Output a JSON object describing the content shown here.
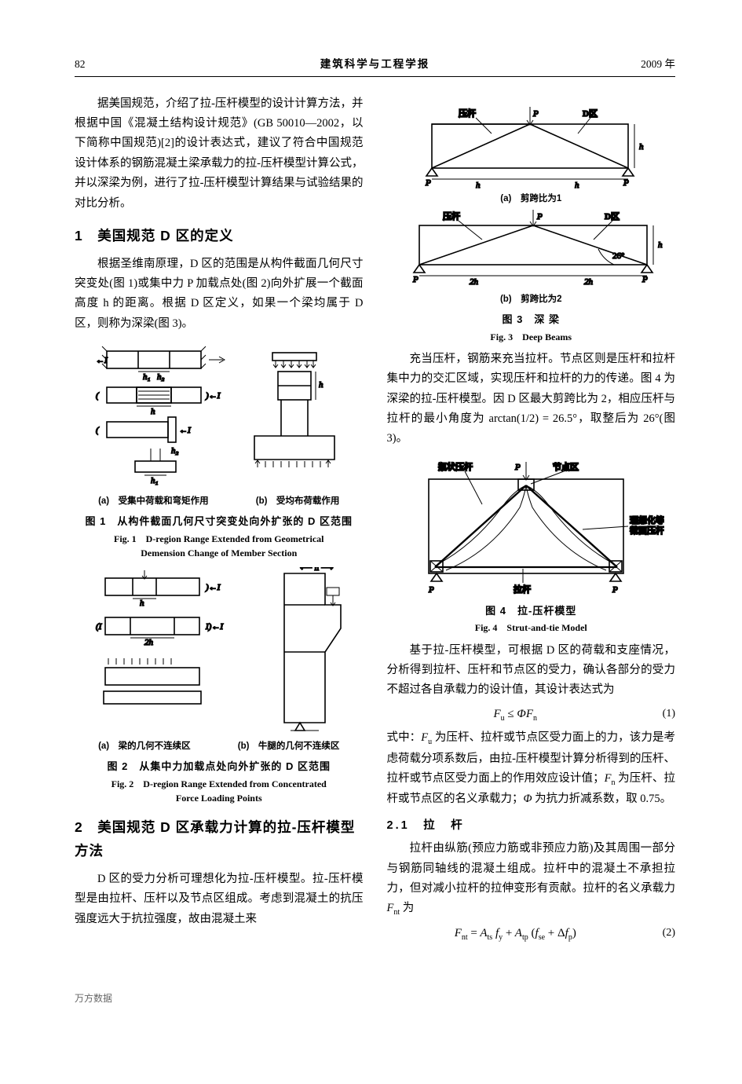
{
  "header": {
    "page": "82",
    "journal": "建筑科学与工程学报",
    "year": "2009 年"
  },
  "left": {
    "intro": "据美国规范，介绍了拉-压杆模型的设计计算方法，并根据中国《混凝土结构设计规范》(GB 50010—2002，以下简称中国规范)[2]的设计表达式，建议了符合中国规范设计体系的钢筋混凝土梁承载力的拉-压杆模型计算公式，并以深梁为例，进行了拉-压杆模型计算结果与试验结果的对比分析。",
    "sec1_title": "1　美国规范 D 区的定义",
    "sec1_body": "根据圣维南原理，D 区的范围是从构件截面几何尺寸突变处(图 1)或集中力 P 加载点处(图 2)向外扩展一个截面高度 h 的距离。根据 D 区定义，如果一个梁均属于 D 区，则称为深梁(图 3)。",
    "fig1_sub_a": "(a)　受集中荷载和弯矩作用",
    "fig1_sub_b": "(b)　受均布荷载作用",
    "fig1_cap_cn": "图 1　从构件截面几何尺寸突变处向外扩张的 D 区范围",
    "fig1_cap_en1": "Fig. 1　D-region Range Extended from Geometrical",
    "fig1_cap_en2": "Demension Change of Member Section",
    "fig2_sub_a": "(a)　梁的几何不连续区",
    "fig2_sub_b": "(b)　牛腿的几何不连续区",
    "fig2_cap_cn": "图 2　从集中力加载点处向外扩张的 D 区范围",
    "fig2_cap_en1": "Fig. 2　D-region Range Extended from Concentrated",
    "fig2_cap_en2": "Force Loading Points",
    "sec2_title": "2　美国规范 D 区承载力计算的拉-压杆模型方法",
    "sec2_body": "D 区的受力分析可理想化为拉-压杆模型。拉-压杆模型是由拉杆、压杆以及节点区组成。考虑到混凝土的抗压强度远大于抗拉强度，故由混凝土来"
  },
  "right": {
    "fig3_labels": {
      "strut": "压杆",
      "P": "P",
      "Dzone": "D区",
      "h": "h",
      "2h": "2h",
      "angle": "26°"
    },
    "fig3_sub_a": "(a)　剪跨比为1",
    "fig3_sub_b": "(b)　剪跨比为2",
    "fig3_cap_cn": "图 3　深 梁",
    "fig3_cap_en": "Fig. 3　Deep Beams",
    "p1": "充当压杆，钢筋来充当拉杆。节点区则是压杆和拉杆集中力的交汇区域，实现压杆和拉杆的力的传递。图 4 为深梁的拉-压杆模型。因 D 区最大剪跨比为 2，相应压杆与拉杆的最小角度为 arctan(1/2) = 26.5°，取整后为 26°(图 3)。",
    "fig4_labels": {
      "bottle": "瓶状压杆",
      "node": "节点区",
      "ideal1": "理想化等",
      "ideal2": "截面压杆",
      "tie": "拉杆",
      "P": "P"
    },
    "fig4_cap_cn": "图 4　拉-压杆模型",
    "fig4_cap_en": "Fig. 4　Strut-and-tie Model",
    "p2": "基于拉-压杆模型，可根据 D 区的荷载和支座情况，分析得到拉杆、压杆和节点区的受力，确认各部分的受力不超过各自承载力的设计值，其设计表达式为",
    "eq1": {
      "expr": "F_u ≤ ΦF_n",
      "num": "(1)"
    },
    "p3": "式中：<span class=\"inline-math\">F<sub>u</sub></span> 为压杆、拉杆或节点区受力面上的力，该力是考虑荷载分项系数后，由拉-压杆模型计算分析得到的压杆、拉杆或节点区受力面上的作用效应设计值；<span class=\"inline-math\">F<sub>n</sub></span> 为压杆、拉杆或节点区的名义承载力；<span class=\"inline-math\">Φ</span> 为抗力折减系数，取 0.75。",
    "subsec21": "2.1　拉　杆",
    "p4": "拉杆由纵筋(预应力筋或非预应力筋)及其周围一部分与钢筋同轴线的混凝土组成。拉杆中的混凝土不承担拉力，但对减小拉杆的拉伸变形有贡献。拉杆的名义承载力 <span class=\"inline-math\">F<sub>nt</sub></span> 为",
    "eq2": {
      "expr": "F_nt = A_ts f_y + A_tp (f_se + Δf_p)",
      "num": "(2)"
    }
  },
  "footer": "万方数据"
}
